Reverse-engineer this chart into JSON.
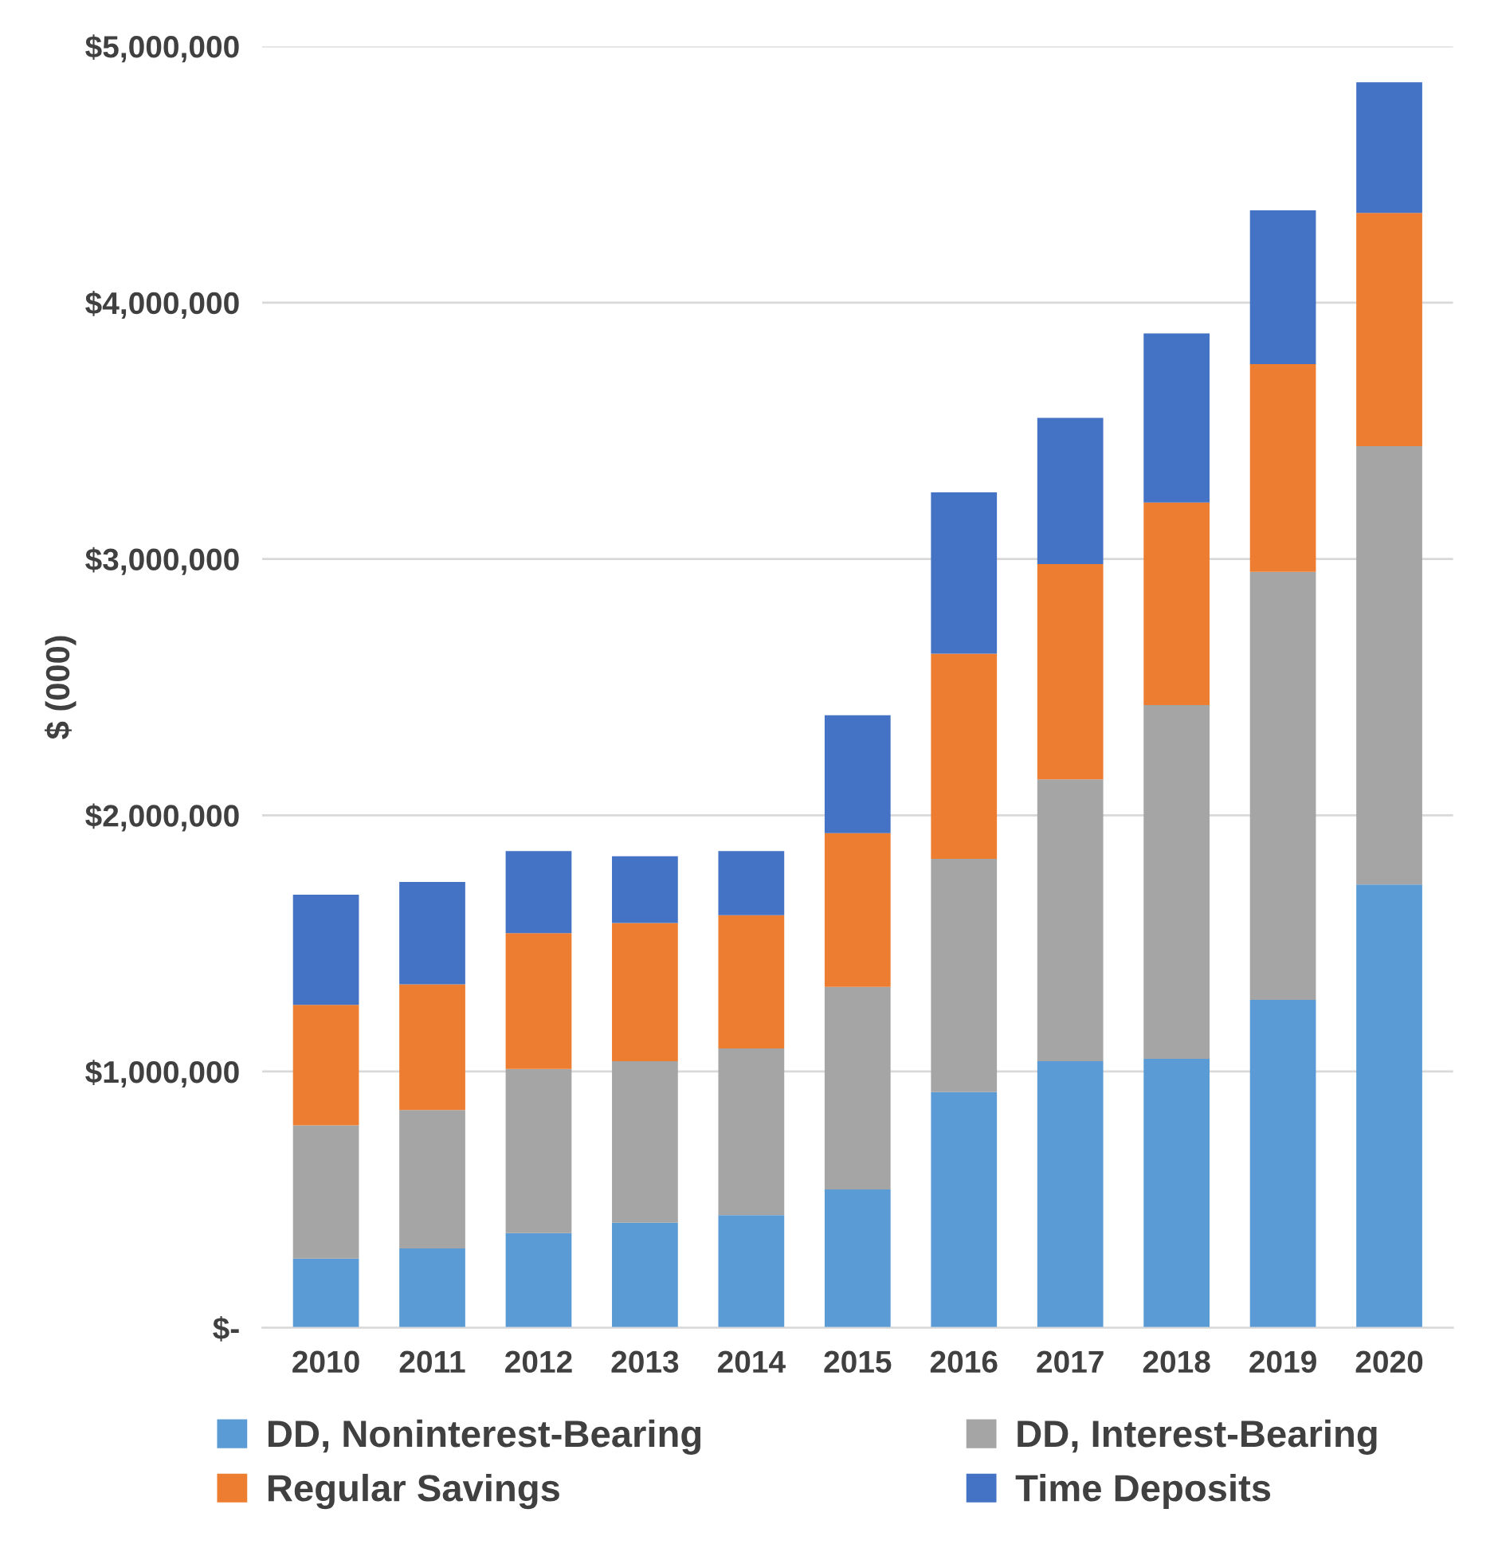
{
  "chart_data": {
    "type": "bar",
    "stacked": true,
    "ylabel": "$ (000)",
    "categories": [
      "2010",
      "2011",
      "2012",
      "2013",
      "2014",
      "2015",
      "2016",
      "2017",
      "2018",
      "2019",
      "2020"
    ],
    "series": [
      {
        "name": "DD, Noninterest-Bearing",
        "color": "#5b9bd5",
        "values": [
          270000,
          310000,
          370000,
          410000,
          440000,
          540000,
          920000,
          1040000,
          1050000,
          1280000,
          1730000
        ]
      },
      {
        "name": "DD, Interest-Bearing",
        "color": "#a5a5a5",
        "values": [
          520000,
          540000,
          640000,
          630000,
          650000,
          790000,
          910000,
          1100000,
          1380000,
          1670000,
          1710000
        ]
      },
      {
        "name": "Regular Savings",
        "color": "#ed7d31",
        "values": [
          470000,
          490000,
          530000,
          540000,
          520000,
          600000,
          800000,
          840000,
          790000,
          810000,
          910000
        ]
      },
      {
        "name": "Time Deposits",
        "color": "#4472c4",
        "values": [
          430000,
          400000,
          320000,
          260000,
          250000,
          460000,
          630000,
          570000,
          660000,
          600000,
          510000
        ]
      }
    ],
    "ylim": [
      0,
      5000000
    ],
    "yticks": [
      {
        "value": 0,
        "label": "$-"
      },
      {
        "value": 1000000,
        "label": "$1,000,000"
      },
      {
        "value": 2000000,
        "label": "$2,000,000"
      },
      {
        "value": 3000000,
        "label": "$3,000,000"
      },
      {
        "value": 4000000,
        "label": "$4,000,000"
      },
      {
        "value": 5000000,
        "label": "$5,000,000"
      }
    ],
    "grid": "y",
    "legend": "bottom"
  }
}
